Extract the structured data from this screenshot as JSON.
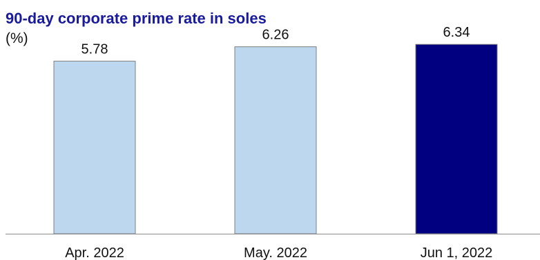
{
  "chart_data": {
    "type": "bar",
    "title": "90-day corporate prime rate in soles",
    "subtitle": "(%)",
    "categories": [
      "Apr. 2022",
      "May. 2022",
      "Jun 1, 2022"
    ],
    "values": [
      5.78,
      6.26,
      6.34
    ],
    "data_labels": [
      "5.78",
      "6.26",
      "6.34"
    ],
    "ylim": [
      0,
      6.9
    ],
    "bar_colors": [
      "#bdd7ee",
      "#bdd7ee",
      "#000080"
    ],
    "bar_edge_color": "#7f7f7f",
    "title_color": "#1a1a9c",
    "grid": false,
    "legend": "none"
  }
}
